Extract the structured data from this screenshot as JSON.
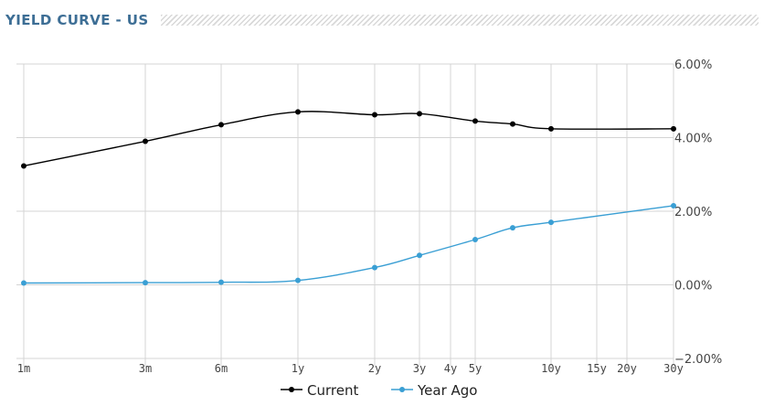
{
  "header": {
    "title": "YIELD CURVE - US"
  },
  "chart_data": {
    "type": "line",
    "title": "YIELD CURVE - US",
    "x_categories": [
      "1m",
      "3m",
      "6m",
      "1y",
      "2y",
      "3y",
      "4y",
      "5y",
      "10y",
      "15y",
      "20y",
      "30y"
    ],
    "y_ticks": [
      "6.00%",
      "4.00%",
      "2.00%",
      "0.00%",
      "−2.00%"
    ],
    "ylim": [
      -2,
      6
    ],
    "grid": true,
    "legend_position": "bottom-center",
    "series": [
      {
        "name": "Current",
        "color": "#000000",
        "points": [
          {
            "x": "1m",
            "y": 3.23
          },
          {
            "x": "3m",
            "y": 3.9
          },
          {
            "x": "6m",
            "y": 4.35
          },
          {
            "x": "1y",
            "y": 4.7
          },
          {
            "x": "2y",
            "y": 4.62
          },
          {
            "x": "3y",
            "y": 4.65
          },
          {
            "x": "5y",
            "y": 4.45
          },
          {
            "x": "7y",
            "y": 4.37
          },
          {
            "x": "10y",
            "y": 4.24
          },
          {
            "x": "30y",
            "y": 4.24
          }
        ]
      },
      {
        "name": "Year Ago",
        "color": "#3a9fd4",
        "points": [
          {
            "x": "1m",
            "y": 0.05
          },
          {
            "x": "3m",
            "y": 0.06
          },
          {
            "x": "6m",
            "y": 0.07
          },
          {
            "x": "1y",
            "y": 0.12
          },
          {
            "x": "2y",
            "y": 0.47
          },
          {
            "x": "3y",
            "y": 0.8
          },
          {
            "x": "5y",
            "y": 1.23
          },
          {
            "x": "7y",
            "y": 1.55
          },
          {
            "x": "10y",
            "y": 1.7
          },
          {
            "x": "30y",
            "y": 2.15
          }
        ]
      }
    ]
  }
}
